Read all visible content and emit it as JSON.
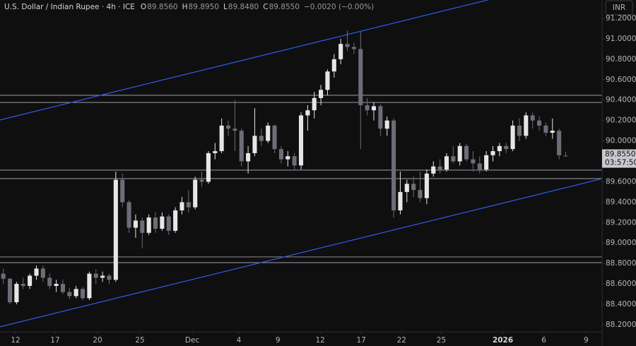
{
  "chart_data": {
    "type": "candlestick",
    "symbol": "U.S. Dollar / Indian Rupee · 4h · ICE",
    "ohlc_header": [
      {
        "key": "O",
        "text": "89.8560"
      },
      {
        "key": "H",
        "text": "89.8950"
      },
      {
        "key": "L",
        "text": "89.8480"
      },
      {
        "key": "C",
        "text": "89.8550"
      }
    ],
    "change_text": "−0.0020 (−0.00%)",
    "currency": "INR",
    "last_price": {
      "value": 89.855,
      "label": "89.8550"
    },
    "countdown": "03:57:50",
    "up_color": "#e6e6e6",
    "down_color": "#6b6e78",
    "xlim": [
      0,
      91
    ],
    "ylim": [
      88.13,
      91.38
    ],
    "yticks": [
      {
        "value": 88.2,
        "label": "88.2000"
      },
      {
        "value": 88.4,
        "label": "88.4000"
      },
      {
        "value": 88.6,
        "label": "88.6000"
      },
      {
        "value": 88.8,
        "label": "88.8000"
      },
      {
        "value": 89.0,
        "label": "89.0000"
      },
      {
        "value": 89.2,
        "label": "89.2000"
      },
      {
        "value": 89.4,
        "label": "89.4000"
      },
      {
        "value": 89.6,
        "label": "89.6000"
      },
      {
        "value": 89.8,
        "label": "89.8000"
      },
      {
        "value": 90.0,
        "label": "90.0000"
      },
      {
        "value": 90.2,
        "label": "90.2000"
      },
      {
        "value": 90.4,
        "label": "90.4000"
      },
      {
        "value": 90.6,
        "label": "90.6000"
      },
      {
        "value": 90.8,
        "label": "90.8000"
      },
      {
        "value": 91.0,
        "label": "91.0000"
      },
      {
        "value": 91.2,
        "label": "91.2000"
      }
    ],
    "xticks": [
      {
        "value": 2.35,
        "label": "12"
      },
      {
        "value": 8.33,
        "label": "17"
      },
      {
        "value": 14.74,
        "label": "20"
      },
      {
        "value": 21.15,
        "label": "25"
      },
      {
        "value": 29.06,
        "label": "Dec"
      },
      {
        "value": 36.1,
        "label": "4"
      },
      {
        "value": 42.0,
        "label": "9"
      },
      {
        "value": 48.4,
        "label": "12"
      },
      {
        "value": 54.6,
        "label": "17"
      },
      {
        "value": 60.7,
        "label": "22"
      },
      {
        "value": 66.7,
        "label": "25"
      },
      {
        "value": 76.0,
        "label": "2026"
      },
      {
        "value": 82.2,
        "label": "6"
      },
      {
        "value": 88.6,
        "label": "9"
      }
    ],
    "zones": [
      [
        90.377,
        90.447
      ],
      [
        89.631,
        89.714
      ],
      [
        88.808,
        88.864
      ]
    ],
    "zone_color": "#b0b3bb",
    "trendlines": [
      {
        "x": [
          0,
          73.7
        ],
        "y": [
          90.205,
          91.38
        ]
      },
      {
        "x": [
          0,
          91
        ],
        "y": [
          88.18,
          89.63
        ]
      }
    ],
    "trendline_color": "#2f5bea",
    "candles": [
      [
        88.7,
        88.75,
        88.6,
        88.65
      ],
      [
        88.65,
        88.66,
        88.4,
        88.42
      ],
      [
        88.42,
        88.62,
        88.4,
        88.6
      ],
      [
        88.6,
        88.66,
        88.55,
        88.58
      ],
      [
        88.58,
        88.7,
        88.55,
        88.68
      ],
      [
        88.68,
        88.78,
        88.64,
        88.75
      ],
      [
        88.75,
        88.78,
        88.62,
        88.66
      ],
      [
        88.66,
        88.7,
        88.55,
        88.58
      ],
      [
        88.58,
        88.64,
        88.52,
        88.6
      ],
      [
        88.6,
        88.64,
        88.5,
        88.52
      ],
      [
        88.52,
        88.56,
        88.45,
        88.48
      ],
      [
        88.48,
        88.58,
        88.46,
        88.55
      ],
      [
        88.55,
        88.57,
        88.44,
        88.46
      ],
      [
        88.46,
        88.72,
        88.44,
        88.7
      ],
      [
        88.7,
        88.74,
        88.6,
        88.66
      ],
      [
        88.66,
        88.72,
        88.62,
        88.68
      ],
      [
        88.68,
        88.7,
        88.6,
        88.64
      ],
      [
        88.64,
        89.7,
        88.62,
        89.62
      ],
      [
        89.62,
        89.68,
        89.35,
        89.4
      ],
      [
        89.4,
        89.42,
        89.1,
        89.15
      ],
      [
        89.15,
        89.28,
        89.05,
        89.22
      ],
      [
        89.22,
        89.25,
        88.95,
        89.1
      ],
      [
        89.1,
        89.28,
        89.08,
        89.25
      ],
      [
        89.25,
        89.3,
        89.1,
        89.14
      ],
      [
        89.14,
        89.3,
        89.12,
        89.26
      ],
      [
        89.26,
        89.28,
        89.08,
        89.12
      ],
      [
        89.12,
        89.35,
        89.1,
        89.32
      ],
      [
        89.32,
        89.45,
        89.28,
        89.4
      ],
      [
        89.4,
        89.52,
        89.3,
        89.35
      ],
      [
        89.35,
        89.65,
        89.33,
        89.62
      ],
      [
        89.62,
        89.7,
        89.55,
        89.6
      ],
      [
        89.6,
        89.9,
        89.58,
        89.88
      ],
      [
        89.88,
        89.98,
        89.82,
        89.9
      ],
      [
        89.9,
        90.22,
        89.88,
        90.15
      ],
      [
        90.15,
        90.2,
        90.05,
        90.12
      ],
      [
        90.12,
        90.4,
        89.9,
        90.1
      ],
      [
        90.1,
        90.12,
        89.75,
        89.8
      ],
      [
        89.8,
        89.95,
        89.68,
        89.88
      ],
      [
        89.88,
        90.32,
        89.85,
        90.05
      ],
      [
        90.05,
        90.12,
        89.95,
        90.0
      ],
      [
        90.0,
        90.18,
        89.98,
        90.15
      ],
      [
        90.15,
        90.16,
        89.88,
        89.92
      ],
      [
        89.92,
        89.95,
        89.78,
        89.82
      ],
      [
        89.82,
        89.9,
        89.75,
        89.85
      ],
      [
        89.85,
        89.88,
        89.72,
        89.76
      ],
      [
        89.76,
        90.28,
        89.72,
        90.25
      ],
      [
        90.25,
        90.35,
        90.1,
        90.3
      ],
      [
        90.3,
        90.48,
        90.22,
        90.42
      ],
      [
        90.42,
        90.55,
        90.35,
        90.5
      ],
      [
        90.5,
        90.7,
        90.45,
        90.68
      ],
      [
        90.68,
        90.85,
        90.62,
        90.8
      ],
      [
        90.8,
        91.0,
        90.75,
        90.95
      ],
      [
        90.95,
        91.08,
        90.88,
        90.92
      ],
      [
        90.92,
        90.96,
        90.85,
        90.9
      ],
      [
        90.9,
        91.07,
        89.92,
        90.35
      ],
      [
        90.35,
        90.42,
        90.25,
        90.3
      ],
      [
        90.3,
        90.38,
        90.2,
        90.34
      ],
      [
        90.34,
        90.36,
        90.05,
        90.12
      ],
      [
        90.12,
        90.24,
        90.05,
        90.2
      ],
      [
        90.2,
        90.22,
        89.25,
        89.32
      ],
      [
        89.32,
        89.7,
        89.28,
        89.5
      ],
      [
        89.5,
        89.62,
        89.4,
        89.58
      ],
      [
        89.58,
        89.65,
        89.45,
        89.52
      ],
      [
        89.52,
        89.7,
        89.4,
        89.44
      ],
      [
        89.44,
        89.72,
        89.38,
        89.68
      ],
      [
        89.68,
        89.8,
        89.65,
        89.75
      ],
      [
        89.75,
        89.82,
        89.68,
        89.72
      ],
      [
        89.72,
        89.88,
        89.7,
        89.85
      ],
      [
        89.85,
        89.95,
        89.78,
        89.8
      ],
      [
        89.8,
        89.98,
        89.76,
        89.95
      ],
      [
        89.95,
        89.97,
        89.8,
        89.82
      ],
      [
        89.82,
        89.9,
        89.7,
        89.78
      ],
      [
        89.78,
        89.85,
        89.68,
        89.72
      ],
      [
        89.72,
        89.9,
        89.7,
        89.86
      ],
      [
        89.86,
        89.95,
        89.8,
        89.9
      ],
      [
        89.9,
        89.98,
        89.85,
        89.95
      ],
      [
        89.95,
        89.98,
        89.88,
        89.92
      ],
      [
        89.92,
        90.2,
        89.9,
        90.15
      ],
      [
        90.15,
        90.22,
        90.0,
        90.05
      ],
      [
        90.05,
        90.28,
        90.02,
        90.25
      ],
      [
        90.25,
        90.28,
        90.12,
        90.2
      ],
      [
        90.2,
        90.24,
        90.1,
        90.15
      ],
      [
        90.15,
        90.18,
        90.05,
        90.08
      ],
      [
        90.08,
        90.22,
        90.02,
        90.1
      ],
      [
        90.1,
        90.12,
        89.82,
        89.86
      ],
      [
        89.856,
        89.895,
        89.848,
        89.855
      ]
    ]
  }
}
